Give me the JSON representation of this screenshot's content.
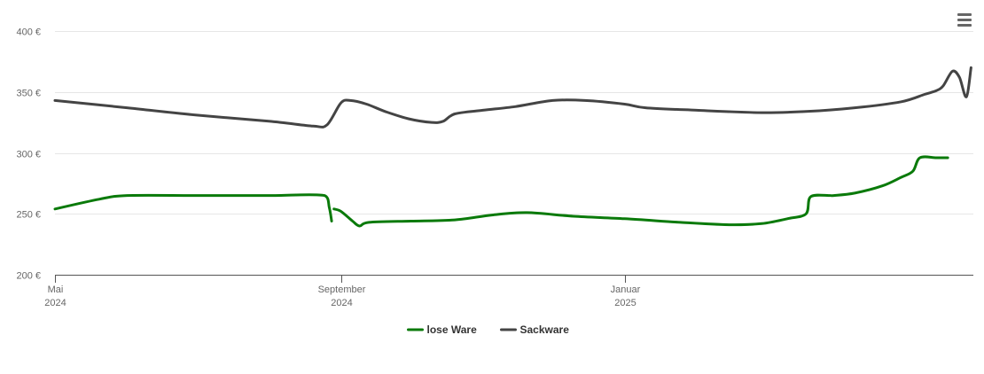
{
  "menu": {
    "icon": "hamburger-menu-icon"
  },
  "chart_data": {
    "type": "line",
    "title": "",
    "xlabel": "",
    "ylabel": "",
    "ylim": [
      200,
      400
    ],
    "xlim": [
      "2024-05-01",
      "2025-05-31"
    ],
    "y_ticks": [
      {
        "value": 200,
        "label": "200 €"
      },
      {
        "value": 250,
        "label": "250 €"
      },
      {
        "value": 300,
        "label": "300 €"
      },
      {
        "value": 350,
        "label": "350 €"
      },
      {
        "value": 400,
        "label": "400 €"
      }
    ],
    "x_ticks": [
      {
        "date": "2024-05-01",
        "label": "Mai",
        "year": "2024"
      },
      {
        "date": "2024-09-01",
        "label": "September",
        "year": "2024"
      },
      {
        "date": "2025-01-01",
        "label": "Januar",
        "year": "2025"
      }
    ],
    "grid": "horizontal",
    "legend": "bottom-center",
    "series": [
      {
        "name": "lose Ware",
        "color": "#0a7a0a",
        "segments": [
          [
            [
              "2024-05-01",
              254
            ],
            [
              "2024-05-20",
              262
            ],
            [
              "2024-06-01",
              265
            ],
            [
              "2024-07-01",
              265
            ],
            [
              "2024-08-01",
              265
            ],
            [
              "2024-08-25",
              265
            ],
            [
              "2024-08-27",
              255
            ],
            [
              "2024-08-28",
              244
            ]
          ],
          [
            [
              "2024-08-29",
              254
            ],
            [
              "2024-09-01",
              252
            ],
            [
              "2024-09-06",
              244
            ],
            [
              "2024-09-09",
              240
            ],
            [
              "2024-09-13",
              243
            ],
            [
              "2024-10-01",
              244
            ],
            [
              "2024-10-20",
              245
            ],
            [
              "2024-11-05",
              249
            ],
            [
              "2024-11-20",
              251
            ],
            [
              "2024-12-10",
              248
            ],
            [
              "2025-01-01",
              246
            ],
            [
              "2025-01-25",
              243
            ],
            [
              "2025-02-15",
              241
            ],
            [
              "2025-03-01",
              242
            ],
            [
              "2025-03-12",
              246
            ],
            [
              "2025-03-20",
              250
            ],
            [
              "2025-03-22",
              264
            ],
            [
              "2025-03-30",
              265
            ],
            [
              "2025-04-01",
              265
            ],
            [
              "2025-04-10",
              267
            ],
            [
              "2025-04-22",
              273
            ],
            [
              "2025-04-30",
              280
            ],
            [
              "2025-05-05",
              285
            ],
            [
              "2025-05-08",
              296
            ],
            [
              "2025-05-15",
              296
            ],
            [
              "2025-05-20",
              296
            ]
          ]
        ]
      },
      {
        "name": "Sackware",
        "color": "#444444",
        "segments": [
          [
            [
              "2024-05-01",
              343
            ],
            [
              "2024-06-01",
              337
            ],
            [
              "2024-07-01",
              331
            ],
            [
              "2024-08-01",
              326
            ],
            [
              "2024-08-20",
              322
            ],
            [
              "2024-08-26",
              323
            ],
            [
              "2024-09-01",
              341
            ],
            [
              "2024-09-05",
              343
            ],
            [
              "2024-09-12",
              340
            ],
            [
              "2024-09-20",
              334
            ],
            [
              "2024-09-30",
              328
            ],
            [
              "2024-10-10",
              325
            ],
            [
              "2024-10-15",
              326
            ],
            [
              "2024-10-20",
              332
            ],
            [
              "2024-11-01",
              335
            ],
            [
              "2024-11-15",
              338
            ],
            [
              "2024-12-01",
              343
            ],
            [
              "2024-12-15",
              343
            ],
            [
              "2025-01-01",
              340
            ],
            [
              "2025-01-10",
              337
            ],
            [
              "2025-02-01",
              335
            ],
            [
              "2025-03-01",
              333
            ],
            [
              "2025-03-20",
              334
            ],
            [
              "2025-04-10",
              337
            ],
            [
              "2025-04-30",
              342
            ],
            [
              "2025-05-10",
              348
            ],
            [
              "2025-05-15",
              351
            ],
            [
              "2025-05-18",
              355
            ],
            [
              "2025-05-22",
              367
            ],
            [
              "2025-05-25",
              362
            ],
            [
              "2025-05-28",
              346
            ],
            [
              "2025-05-30",
              370
            ]
          ]
        ]
      }
    ]
  }
}
